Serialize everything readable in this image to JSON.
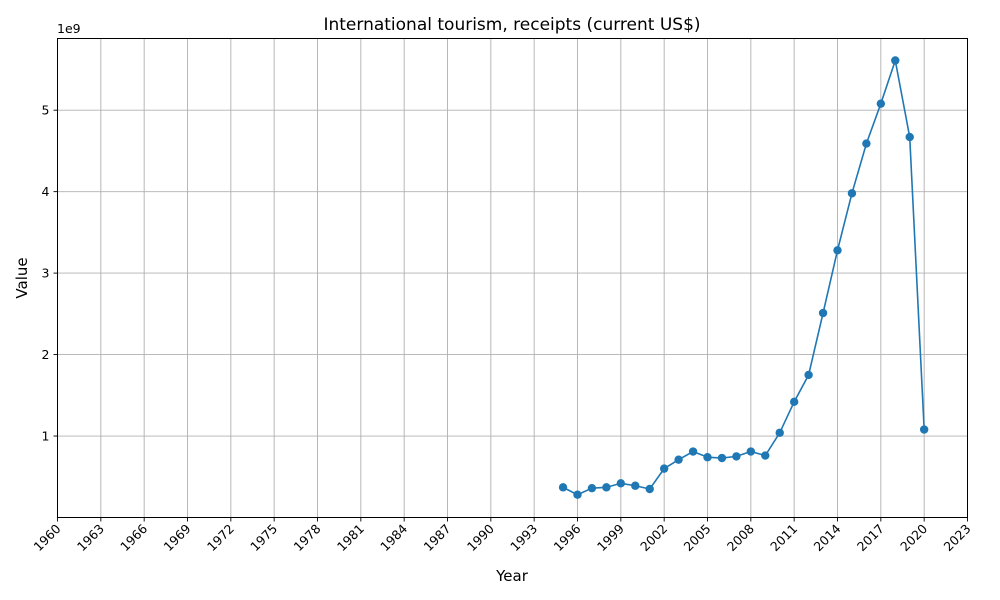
{
  "chart_data": {
    "type": "line",
    "title": "International tourism, receipts (current US$)",
    "xlabel": "Year",
    "ylabel": "Value",
    "y_offset_label": "1e9",
    "xlim": [
      1960,
      2023
    ],
    "ylim": [
      0,
      5.88
    ],
    "y_scale_note": "values in units of 1e9",
    "grid": true,
    "x_ticks": [
      1960,
      1963,
      1966,
      1969,
      1972,
      1975,
      1978,
      1981,
      1984,
      1987,
      1990,
      1993,
      1996,
      1999,
      2002,
      2005,
      2008,
      2011,
      2014,
      2017,
      2020,
      2023
    ],
    "y_ticks": [
      1,
      2,
      3,
      4,
      5
    ],
    "series_color": "#1f77b4",
    "x": [
      1995,
      1996,
      1997,
      1998,
      1999,
      2000,
      2001,
      2002,
      2003,
      2004,
      2005,
      2006,
      2007,
      2008,
      2009,
      2010,
      2011,
      2012,
      2013,
      2014,
      2015,
      2016,
      2017,
      2018,
      2019,
      2020
    ],
    "values": [
      0.37,
      0.28,
      0.36,
      0.37,
      0.42,
      0.39,
      0.35,
      0.6,
      0.71,
      0.81,
      0.74,
      0.73,
      0.75,
      0.81,
      0.76,
      1.04,
      1.42,
      1.75,
      2.51,
      3.28,
      3.98,
      4.59,
      5.08,
      5.61,
      4.67,
      1.08
    ]
  }
}
